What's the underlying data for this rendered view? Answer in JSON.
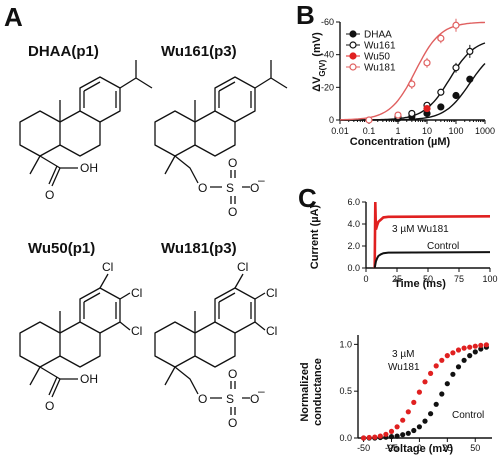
{
  "panels": {
    "a": "A",
    "b": "B",
    "c": "C"
  },
  "molecules": [
    {
      "title": "DHAA(p1)",
      "atoms": {
        "oh": "OH",
        "o": "O"
      }
    },
    {
      "title": "Wu161(p3)",
      "atoms": {
        "o1": "O",
        "s": "S",
        "o2": "O",
        "o3": "O",
        "minus": "–"
      }
    },
    {
      "title": "Wu50(p1)",
      "atoms": {
        "cl1": "Cl",
        "cl2": "Cl",
        "cl3": "Cl",
        "oh": "OH",
        "o": "O"
      }
    },
    {
      "title": "Wu181(p3)",
      "atoms": {
        "cl1": "Cl",
        "cl2": "Cl",
        "cl3": "Cl",
        "o1": "O",
        "s": "S",
        "o2": "O",
        "o3": "O",
        "minus": "–"
      }
    }
  ],
  "colors": {
    "black": "#111111",
    "red": "#e02020",
    "pink": "#e06060"
  },
  "chart_data": [
    {
      "id": "B",
      "type": "scatter",
      "xscale": "log",
      "xlim": [
        0.01,
        1000
      ],
      "ylim": [
        0,
        -60
      ],
      "xticks": [
        "0.01",
        "0.1",
        "1",
        "10",
        "100",
        "1000"
      ],
      "yticks": [
        "0",
        "-20",
        "-40",
        "-60"
      ],
      "xlabel": "Concentration (µM)",
      "ylabel_main": "ΔV",
      "ylabel_sub": "G(V)",
      "ylabel_unit": " (mV)",
      "legend_position": "top-left",
      "series": [
        {
          "name": "DHAA",
          "marker": "filled",
          "color": "#111111",
          "x": [
            1,
            3,
            10,
            30,
            100,
            300
          ],
          "y": [
            -1,
            -2,
            -4,
            -8,
            -15,
            -25
          ],
          "yerr": [
            1,
            1,
            1,
            1.5,
            2,
            2
          ]
        },
        {
          "name": "Wu161",
          "marker": "open",
          "color": "#111111",
          "x": [
            1,
            3,
            10,
            30,
            100,
            300
          ],
          "y": [
            -2,
            -4,
            -9,
            -17,
            -32,
            -42
          ],
          "yerr": [
            1,
            1,
            1.5,
            2,
            3,
            4
          ]
        },
        {
          "name": "Wu50",
          "marker": "filled",
          "color": "#e02020",
          "x": [
            10
          ],
          "y": [
            -7
          ],
          "yerr": [
            1.5
          ]
        },
        {
          "name": "Wu181",
          "marker": "open",
          "color": "#e06060",
          "x": [
            0.1,
            1,
            3,
            10,
            30,
            100
          ],
          "y": [
            0,
            -3,
            -22,
            -35,
            -50,
            -58
          ],
          "yerr": [
            0.5,
            1,
            3,
            3,
            3,
            4
          ]
        }
      ]
    },
    {
      "id": "C-top",
      "type": "line",
      "xlim": [
        0,
        100
      ],
      "ylim": [
        0,
        6
      ],
      "xticks": [
        "0",
        "25",
        "50",
        "75",
        "100"
      ],
      "yticks": [
        "0.0",
        "2.0",
        "4.0",
        "6.0"
      ],
      "xlabel": "Time (ms)",
      "ylabel": "Current (µA)",
      "annotations": {
        "red": "3 µM Wu181",
        "black": "Control"
      },
      "series": [
        {
          "label_key": "red",
          "color": "#e02020",
          "t": [
            7,
            7.5,
            8,
            9,
            10,
            12,
            14,
            18,
            100
          ],
          "y": [
            0,
            6,
            3.5,
            3.9,
            4.2,
            4.4,
            4.6,
            4.65,
            4.7
          ]
        },
        {
          "label_key": "black",
          "color": "#111111",
          "t": [
            7,
            8,
            9,
            10,
            12,
            14,
            18,
            100
          ],
          "y": [
            0,
            0.6,
            0.9,
            1.1,
            1.25,
            1.35,
            1.4,
            1.45
          ]
        }
      ]
    },
    {
      "id": "C-bottom",
      "type": "scatter",
      "xlim": [
        -55,
        65
      ],
      "ylim": [
        0,
        1.1
      ],
      "xticks": [
        "-50",
        "-25",
        "0",
        "25",
        "50"
      ],
      "yticks": [
        "0.0",
        "0.5",
        "1.0"
      ],
      "xlabel": "Voltage (mV)",
      "ylabel_line1": "Normalized",
      "ylabel_line2": "conductance",
      "annotations": {
        "red_line1": "3 µM",
        "red_line2": "Wu181",
        "black": "Control"
      },
      "series": [
        {
          "label_key": "red",
          "color": "#e02020",
          "x": [
            -50,
            -45,
            -40,
            -35,
            -30,
            -25,
            -20,
            -15,
            -10,
            -5,
            0,
            5,
            10,
            15,
            20,
            25,
            30,
            35,
            40,
            45,
            50,
            55,
            60
          ],
          "y": [
            0,
            0.005,
            0.01,
            0.02,
            0.04,
            0.07,
            0.12,
            0.19,
            0.28,
            0.38,
            0.49,
            0.6,
            0.69,
            0.77,
            0.83,
            0.88,
            0.91,
            0.94,
            0.96,
            0.97,
            0.98,
            0.99,
            0.995
          ]
        },
        {
          "label_key": "black",
          "color": "#111111",
          "x": [
            -50,
            -45,
            -40,
            -35,
            -30,
            -25,
            -20,
            -15,
            -10,
            -5,
            0,
            5,
            10,
            15,
            20,
            25,
            30,
            35,
            40,
            45,
            50,
            55,
            60
          ],
          "y": [
            0,
            0,
            0,
            0.005,
            0.01,
            0.015,
            0.02,
            0.035,
            0.05,
            0.08,
            0.12,
            0.18,
            0.26,
            0.36,
            0.47,
            0.58,
            0.68,
            0.76,
            0.83,
            0.88,
            0.92,
            0.95,
            0.97
          ]
        }
      ]
    }
  ]
}
